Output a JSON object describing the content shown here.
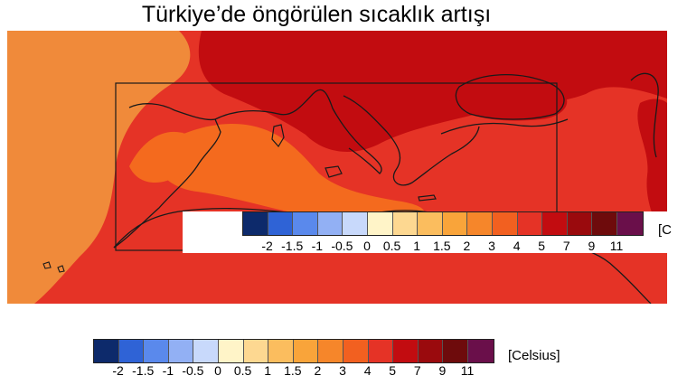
{
  "title": "Türkiye’de öngörülen sıcaklık artışı",
  "colors": {
    "ocean_atlantic": "#f08a3a",
    "land_hot": "#e53326",
    "very_hot": "#c20c10",
    "sea_warm": "#f46a1e",
    "background": "#ffffff",
    "outline": "#1a1a1a"
  },
  "legend": {
    "unit_label": "[Celsius]",
    "inner_unit_label": "[C",
    "colors": [
      "#0d2a6b",
      "#2f63d6",
      "#5a89ec",
      "#92b0f4",
      "#c8d9fb",
      "#fff4c8",
      "#fdd891",
      "#fbbd5e",
      "#f9a43a",
      "#f6862a",
      "#f26020",
      "#e53326",
      "#c20c10",
      "#9a0a0d",
      "#6e0b0c",
      "#6a0f4a"
    ],
    "ticks": [
      "-2",
      "-1.5",
      "-1",
      "-0.5",
      "0",
      "0.5",
      "1",
      "1.5",
      "2",
      "3",
      "4",
      "5",
      "7",
      "9",
      "11"
    ]
  }
}
